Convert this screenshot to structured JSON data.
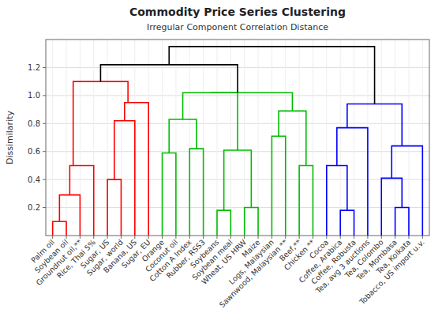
{
  "chart_data": {
    "type": "dendrogram",
    "title": "Commodity Price Series Clustering",
    "subtitle": "Irregular Component Correlation Distance",
    "y_label": "Dissimilarity",
    "categories": [
      "Palm oil",
      "Soybean oil",
      "Groundnut oil,**",
      "Rice, Thai 5%",
      "Sugar, US",
      "Sugar, world",
      "Banana, US",
      "Sugar, EU",
      "Orange",
      "Coconut oil",
      "Cotton A Index",
      "Rubber, RSS3",
      "Soybeans",
      "Soybean meal",
      "Wheat, US HRW",
      "Maize",
      "Logs, Malaysian",
      "Sawnwood, Malaysian **",
      "Beef,**",
      "Chicken **",
      "Cocoa",
      "Coffee, Arabica",
      "Coffee, Robusta",
      "Tea, avg 3 auctions",
      "Tea, Colombo",
      "Tea, Mombasa",
      "Tea, Kolkata",
      "Tobacco, US import u.v."
    ],
    "ylim": [
      0,
      1.4
    ],
    "yticks": [
      0.2,
      0.4,
      0.6,
      0.8,
      {
        "value": 1.0,
        "label": "1.0"
      },
      1.2
    ],
    "grid": true,
    "series": [
      {
        "color": "#FF0000",
        "links": [
          [
            1,
            2,
            0,
            0,
            0.1
          ],
          [
            1.5,
            3,
            0.1,
            0,
            0.29
          ],
          [
            2.25,
            4,
            0.29,
            0,
            0.5
          ],
          [
            5,
            6,
            0,
            0,
            0.4
          ],
          [
            5.5,
            7,
            0.4,
            0,
            0.82
          ],
          [
            6.25,
            8,
            0.82,
            0,
            0.95
          ],
          [
            2.5,
            6.5,
            0.5,
            0.95,
            1.1
          ]
        ]
      },
      {
        "color": "#00BB00",
        "links": [
          [
            9,
            10,
            0,
            0,
            0.59
          ],
          [
            11,
            12,
            0,
            0,
            0.62
          ],
          [
            9.5,
            11.5,
            0.59,
            0.62,
            0.83
          ],
          [
            13,
            14,
            0,
            0,
            0.18
          ],
          [
            15,
            16,
            0,
            0,
            0.2
          ],
          [
            13.5,
            15.5,
            0.18,
            0.2,
            0.61
          ],
          [
            10.5,
            14.5,
            0.83,
            0.61,
            1.02
          ],
          [
            17,
            18,
            0,
            0,
            0.71
          ],
          [
            19,
            20,
            0,
            0,
            0.5
          ],
          [
            17.5,
            19.5,
            0.71,
            0.5,
            0.89
          ],
          [
            12.5,
            18.5,
            1.02,
            0.89,
            1.02
          ]
        ]
      },
      {
        "color": "#0000FF",
        "links": [
          [
            22,
            23,
            0,
            0,
            0.18
          ],
          [
            21,
            22.5,
            0,
            0.18,
            0.5
          ],
          [
            21.75,
            24,
            0.5,
            0,
            0.77
          ],
          [
            26,
            27,
            0,
            0,
            0.2
          ],
          [
            25,
            26.5,
            0,
            0.2,
            0.41
          ],
          [
            25.75,
            28,
            0.41,
            0,
            0.64
          ],
          [
            22.5,
            26.5,
            0.77,
            0.64,
            0.94
          ]
        ]
      },
      {
        "color": "#000000",
        "links": [
          [
            4.5,
            14.5,
            1.1,
            1.02,
            1.22
          ],
          [
            9.5,
            24.5,
            1.22,
            0.94,
            1.35
          ]
        ]
      }
    ]
  }
}
